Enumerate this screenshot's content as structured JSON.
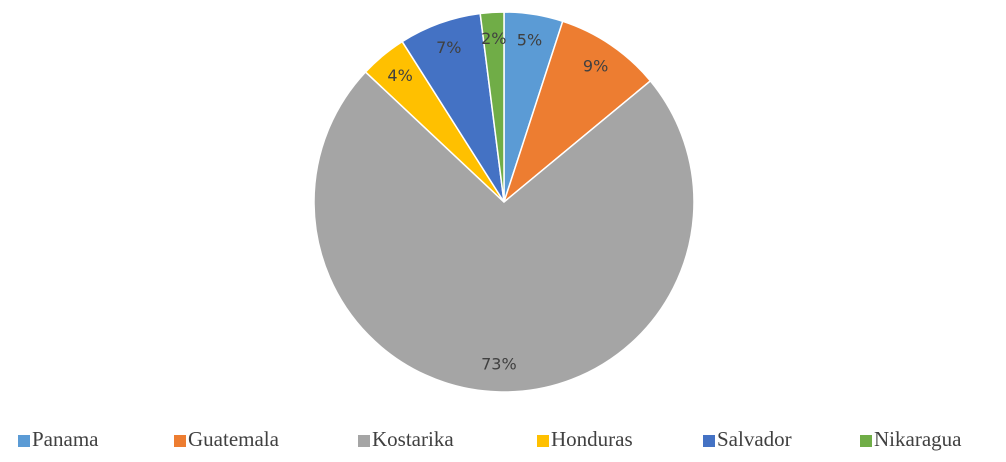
{
  "chart_data": {
    "type": "pie",
    "categories": [
      "Panama",
      "Guatemala",
      "Kostarika",
      "Honduras",
      "Salvador",
      "Nikaragua"
    ],
    "values": [
      5,
      9,
      73,
      4,
      7,
      2
    ],
    "value_labels": [
      "5%",
      "9%",
      "73%",
      "4%",
      "7%",
      "2%"
    ],
    "colors": [
      "#5b9bd5",
      "#ed7d31",
      "#a5a5a5",
      "#ffc000",
      "#4472c4",
      "#70ad47"
    ],
    "legend": "bottom"
  }
}
